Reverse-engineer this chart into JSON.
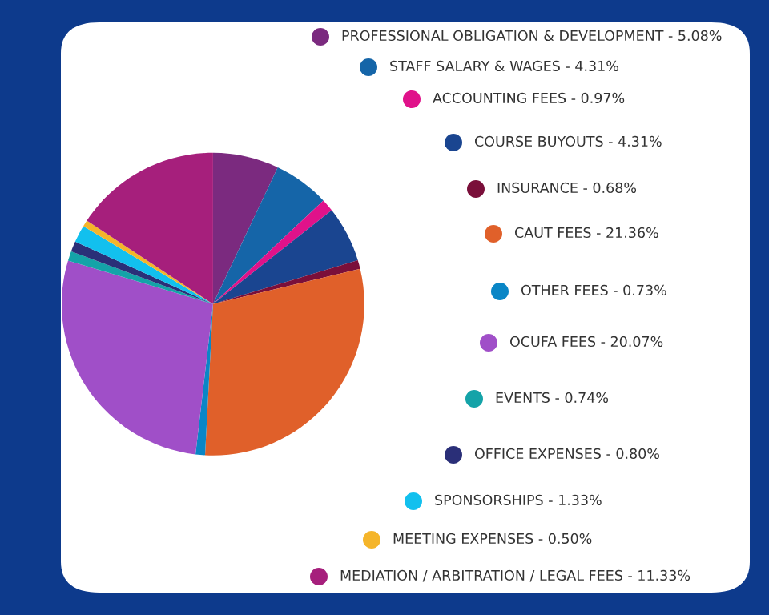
{
  "chart_data": {
    "type": "pie",
    "legend": "right",
    "categories": [
      "PROFESSIONAL OBLIGATION & DEVELOPMENT",
      "STAFF SALARY & WAGES",
      "ACCOUNTING FEES",
      "COURSE BUYOUTS",
      "INSURANCE",
      "CAUT FEES",
      "OTHER FEES",
      "OCUFA FEES",
      "EVENTS",
      "OFFICE EXPENSES",
      "SPONSORSHIPS",
      "MEETING EXPENSES",
      "MEDIATION / ARBITRATION / LEGAL FEES"
    ],
    "values": [
      5.08,
      4.31,
      0.97,
      4.31,
      0.68,
      21.36,
      0.73,
      20.07,
      0.74,
      0.8,
      1.33,
      0.5,
      11.33
    ],
    "value_labels": [
      "5.08%",
      "4.31%",
      "0.97%",
      "4.31%",
      "0.68%",
      "21.36%",
      "0.73%",
      "20.07%",
      "0.74%",
      "0.80%",
      "1.33%",
      "0.50%",
      "11.33%"
    ],
    "colors": [
      "#7b2a7f",
      "#1565a8",
      "#e0128a",
      "#1a4590",
      "#7a0f3a",
      "#e0602a",
      "#0a86c6",
      "#a04fc8",
      "#14a3a8",
      "#2a2f78",
      "#12c0ee",
      "#f5b52a",
      "#a61f7c"
    ]
  }
}
